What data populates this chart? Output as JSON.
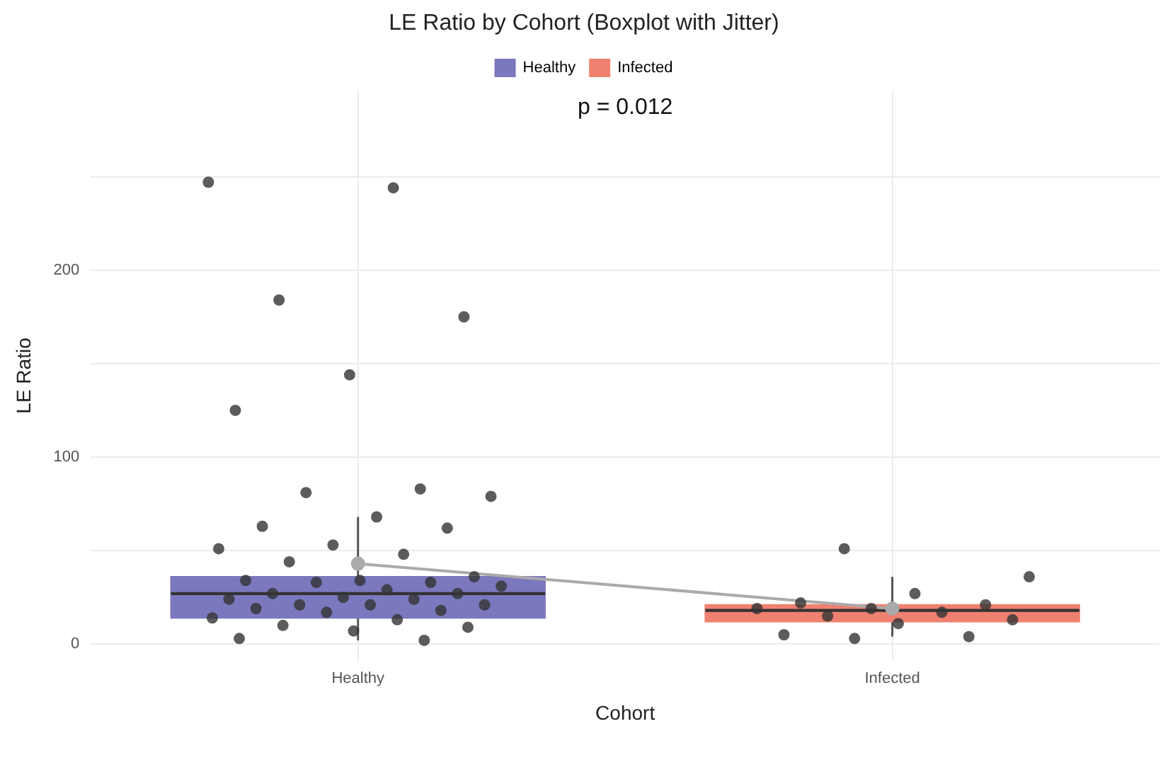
{
  "chart_data": {
    "type": "box",
    "title": "LE Ratio by Cohort (Boxplot with Jitter)",
    "xlabel": "Cohort",
    "ylabel": "LE Ratio",
    "categories": [
      "Healthy",
      "Infected"
    ],
    "series": [
      {
        "name": "Healthy",
        "color": "#7b78bd",
        "boxes": [
          {
            "low": 2,
            "q1": 14,
            "median": 27,
            "q3": 36,
            "high": 68
          },
          null
        ]
      },
      {
        "name": "Infected",
        "color": "#f08070",
        "boxes": [
          null,
          {
            "low": 4,
            "q1": 12,
            "median": 18,
            "q3": 21,
            "high": 36
          }
        ]
      },
      {
        "type": "scatter",
        "color": "#333333",
        "x": [
          "Healthy",
          "Healthy",
          "Healthy",
          "Healthy",
          "Healthy",
          "Healthy",
          "Healthy",
          "Healthy",
          "Healthy",
          "Healthy",
          "Healthy",
          "Healthy",
          "Healthy",
          "Healthy",
          "Healthy",
          "Healthy",
          "Healthy",
          "Healthy",
          "Healthy",
          "Healthy",
          "Healthy",
          "Healthy",
          "Healthy",
          "Healthy",
          "Healthy",
          "Healthy",
          "Healthy",
          "Healthy",
          "Healthy",
          "Healthy",
          "Healthy",
          "Healthy",
          "Healthy",
          "Healthy",
          "Healthy",
          "Healthy",
          "Healthy",
          "Healthy",
          "Healthy",
          "Healthy",
          "Healthy",
          "Infected",
          "Infected",
          "Infected",
          "Infected",
          "Infected",
          "Infected",
          "Infected",
          "Infected",
          "Infected",
          "Infected",
          "Infected",
          "Infected",
          "Infected",
          "Infected"
        ],
        "values": [
          247,
          244,
          184,
          175,
          144,
          125,
          83,
          81,
          79,
          68,
          63,
          62,
          53,
          51,
          48,
          44,
          36,
          34,
          34,
          33,
          33,
          31,
          29,
          27,
          27,
          25,
          24,
          24,
          21,
          21,
          21,
          19,
          18,
          17,
          14,
          13,
          10,
          9,
          7,
          3,
          2,
          51,
          36,
          27,
          22,
          21,
          19,
          19,
          17,
          15,
          13,
          11,
          5,
          4,
          3
        ]
      },
      {
        "type": "line",
        "color": "#aaaaaa",
        "marker": "circle",
        "values": [
          43,
          19
        ]
      }
    ],
    "ylim": [
      -9,
      296
    ],
    "yticks": [
      0,
      {
        "value": 50,
        "label": null
      },
      100,
      {
        "value": 150,
        "label": null
      },
      200,
      {
        "value": 250,
        "label": null
      }
    ],
    "grid": true,
    "legend": "top",
    "annotations": [
      "p = 0.012"
    ]
  }
}
